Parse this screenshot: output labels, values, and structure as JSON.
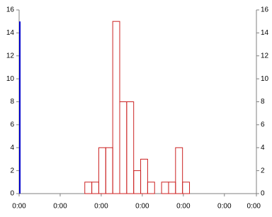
{
  "chart_data": {
    "type": "histogram",
    "series": [
      {
        "color": "#0000cc",
        "bins": [
          0,
          0.01
        ],
        "counts": [
          15
        ]
      },
      {
        "color": "#cc2222",
        "bins": [
          1.6,
          1.77,
          1.94,
          2.11,
          2.28,
          2.45,
          2.62,
          2.79,
          2.96,
          3.13,
          3.3,
          3.47,
          3.64,
          3.81,
          3.98,
          4.15
        ],
        "counts": [
          1,
          1,
          4,
          4,
          15,
          8,
          8,
          2,
          3,
          1,
          0,
          1,
          1,
          4,
          1
        ]
      }
    ],
    "xlim": [
      0,
      5.78
    ],
    "xticks": [
      {
        "value": 0,
        "label": "0:00"
      },
      {
        "value": 1,
        "label": "0:00"
      },
      {
        "value": 2,
        "label": "0:00"
      },
      {
        "value": 3,
        "label": "0:00"
      },
      {
        "value": 4,
        "label": "0:00"
      },
      {
        "value": 5,
        "label": "0:00"
      },
      {
        "value": 5.78,
        "label": "0:00"
      }
    ],
    "ylim": [
      0,
      16
    ],
    "yticks": [
      0,
      2,
      4,
      6,
      8,
      10,
      12,
      14,
      16
    ],
    "y2lim": [
      0,
      16
    ],
    "y2ticks": [
      0,
      2,
      4,
      6,
      8,
      10,
      12,
      14,
      16
    ]
  }
}
